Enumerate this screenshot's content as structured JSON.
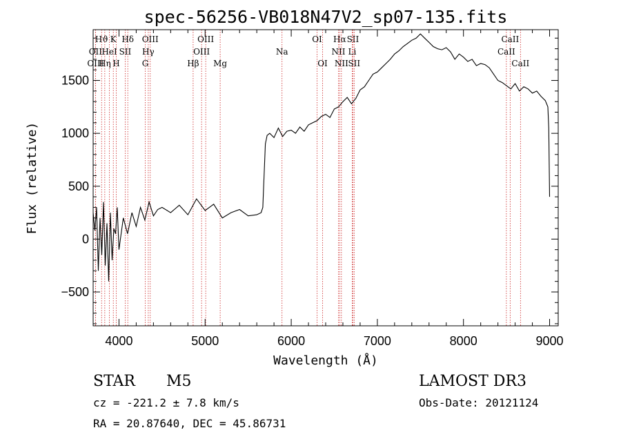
{
  "chart_data": {
    "type": "line",
    "title": "spec-56256-VB018N47V2_sp07-135.fits",
    "xlabel": "Wavelength (Å)",
    "ylabel": "Flux (relative)",
    "xlim": [
      3700,
      9100
    ],
    "ylim": [
      -820,
      1980
    ],
    "xticks": [
      4000,
      5000,
      6000,
      7000,
      8000,
      9000
    ],
    "yticks": [
      -500,
      0,
      500,
      1000,
      1500
    ],
    "grid": false,
    "series": [
      {
        "name": "flux",
        "x": [
          3700,
          3720,
          3740,
          3760,
          3780,
          3800,
          3820,
          3840,
          3860,
          3880,
          3900,
          3920,
          3940,
          3960,
          3980,
          4000,
          4050,
          4100,
          4150,
          4200,
          4250,
          4300,
          4350,
          4400,
          4450,
          4500,
          4600,
          4700,
          4800,
          4900,
          5000,
          5100,
          5200,
          5300,
          5400,
          5500,
          5600,
          5650,
          5670,
          5680,
          5700,
          5720,
          5750,
          5800,
          5850,
          5900,
          5950,
          6000,
          6050,
          6100,
          6150,
          6200,
          6250,
          6300,
          6350,
          6400,
          6450,
          6500,
          6550,
          6600,
          6650,
          6700,
          6750,
          6800,
          6850,
          6900,
          6950,
          7000,
          7050,
          7100,
          7150,
          7200,
          7250,
          7300,
          7350,
          7400,
          7450,
          7500,
          7550,
          7600,
          7650,
          7700,
          7750,
          7800,
          7850,
          7900,
          7950,
          8000,
          8050,
          8100,
          8150,
          8200,
          8250,
          8300,
          8350,
          8400,
          8450,
          8500,
          8550,
          8600,
          8650,
          8700,
          8750,
          8800,
          8850,
          8900,
          8950,
          8980,
          8990,
          9000
        ],
        "y": [
          250,
          80,
          300,
          -300,
          200,
          -150,
          350,
          -250,
          150,
          -400,
          250,
          -200,
          100,
          50,
          300,
          -100,
          200,
          50,
          250,
          120,
          300,
          180,
          350,
          220,
          280,
          300,
          250,
          320,
          230,
          380,
          270,
          330,
          200,
          250,
          280,
          220,
          230,
          250,
          300,
          500,
          900,
          980,
          1000,
          960,
          1050,
          970,
          1020,
          1030,
          1000,
          1060,
          1020,
          1080,
          1100,
          1120,
          1160,
          1180,
          1150,
          1230,
          1250,
          1300,
          1340,
          1280,
          1330,
          1410,
          1440,
          1500,
          1560,
          1580,
          1620,
          1660,
          1700,
          1750,
          1780,
          1820,
          1850,
          1880,
          1900,
          1940,
          1900,
          1860,
          1820,
          1800,
          1790,
          1810,
          1770,
          1700,
          1750,
          1720,
          1680,
          1700,
          1640,
          1660,
          1650,
          1620,
          1560,
          1500,
          1480,
          1450,
          1420,
          1470,
          1400,
          1440,
          1420,
          1380,
          1400,
          1350,
          1310,
          1250,
          1050,
          400
        ]
      }
    ],
    "lines": [
      {
        "name": "Hϑ",
        "wave": 3798,
        "row": 0
      },
      {
        "name": "K",
        "wave": 3934,
        "row": 0
      },
      {
        "name": "Hδ",
        "wave": 4102,
        "row": 0
      },
      {
        "name": "OIII",
        "wave": 4363,
        "row": 0
      },
      {
        "name": "OIII",
        "wave": 5007,
        "row": 0
      },
      {
        "name": "OI",
        "wave": 6300,
        "row": 0
      },
      {
        "name": "Hα",
        "wave": 6563,
        "row": 0
      },
      {
        "name": "SII",
        "wave": 6716,
        "row": 0
      },
      {
        "name": "CaII",
        "wave": 8542,
        "row": 0
      },
      {
        "name": "OII",
        "wave": 3727,
        "row": 1
      },
      {
        "name": "HeI",
        "wave": 3889,
        "row": 1
      },
      {
        "name": "SII",
        "wave": 4072,
        "row": 1
      },
      {
        "name": "Hγ",
        "wave": 4340,
        "row": 1
      },
      {
        "name": "OIII",
        "wave": 4959,
        "row": 1
      },
      {
        "name": "Na",
        "wave": 5893,
        "row": 1
      },
      {
        "name": "NII",
        "wave": 6548,
        "row": 1
      },
      {
        "name": "Li",
        "wave": 6708,
        "row": 1
      },
      {
        "name": "CaII",
        "wave": 8498,
        "row": 1
      },
      {
        "name": "OIII",
        "wave": 3727,
        "row": 2
      },
      {
        "name": "Hη",
        "wave": 3835,
        "row": 2
      },
      {
        "name": "H",
        "wave": 3968,
        "row": 2
      },
      {
        "name": "G",
        "wave": 4305,
        "row": 2
      },
      {
        "name": "Hβ",
        "wave": 4861,
        "row": 2
      },
      {
        "name": "Mg",
        "wave": 5175,
        "row": 2
      },
      {
        "name": "OI",
        "wave": 6364,
        "row": 2
      },
      {
        "name": "NII",
        "wave": 6583,
        "row": 2
      },
      {
        "name": "SII",
        "wave": 6731,
        "row": 2
      },
      {
        "name": "CaII",
        "wave": 8662,
        "row": 2
      }
    ]
  },
  "info": {
    "object_type": "STAR",
    "subclass": "M5",
    "survey": "LAMOST DR3",
    "redshift": "cz = -221.2 ± 7.8 km/s",
    "obs_date": "Obs-Date: 20121124",
    "coords": "RA =  20.87640, DEC =  45.86731"
  }
}
